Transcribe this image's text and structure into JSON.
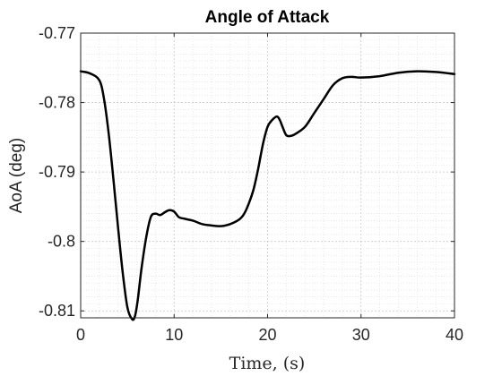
{
  "chart_data": {
    "type": "line",
    "title": "Angle of Attack",
    "xlabel": "Time, (s)",
    "ylabel": "AoA (deg)",
    "xlim": [
      0,
      40
    ],
    "ylim": [
      -0.811,
      -0.77
    ],
    "xticks": [
      0,
      10,
      20,
      30,
      40
    ],
    "xtick_labels": [
      "0",
      "10",
      "20",
      "30",
      "40"
    ],
    "yticks": [
      -0.77,
      -0.78,
      -0.79,
      -0.8,
      -0.81
    ],
    "ytick_labels": [
      "-0.77",
      "-0.78",
      "-0.79",
      "-0.8",
      "-0.81"
    ],
    "grid": true,
    "minor_grid": true,
    "series": [
      {
        "color": "#000000",
        "x": [
          0,
          1,
          2,
          2.5,
          3,
          3.5,
          4,
          4.5,
          5,
          5.5,
          5.8,
          6.1,
          6.5,
          7,
          7.5,
          8,
          8.5,
          9,
          9.5,
          10,
          10.5,
          11,
          12,
          13,
          14,
          15,
          16,
          17,
          17.5,
          18,
          18.5,
          19,
          19.5,
          20,
          20.5,
          21,
          21.3,
          21.6,
          22,
          22.5,
          23,
          24,
          25,
          26,
          27,
          28,
          29,
          30,
          32,
          34,
          36,
          38,
          40
        ],
        "y": [
          -0.7755,
          -0.7758,
          -0.7768,
          -0.7795,
          -0.7845,
          -0.791,
          -0.798,
          -0.8045,
          -0.8095,
          -0.8112,
          -0.8108,
          -0.8085,
          -0.804,
          -0.7995,
          -0.7965,
          -0.796,
          -0.7962,
          -0.7958,
          -0.7955,
          -0.7957,
          -0.7965,
          -0.7967,
          -0.797,
          -0.7975,
          -0.7977,
          -0.7978,
          -0.7975,
          -0.7968,
          -0.796,
          -0.7945,
          -0.7925,
          -0.7895,
          -0.786,
          -0.7835,
          -0.7825,
          -0.782,
          -0.7825,
          -0.7835,
          -0.7847,
          -0.7848,
          -0.7845,
          -0.7835,
          -0.7815,
          -0.7795,
          -0.7775,
          -0.7765,
          -0.7763,
          -0.7764,
          -0.7762,
          -0.7757,
          -0.7755,
          -0.7756,
          -0.7759
        ]
      }
    ]
  }
}
